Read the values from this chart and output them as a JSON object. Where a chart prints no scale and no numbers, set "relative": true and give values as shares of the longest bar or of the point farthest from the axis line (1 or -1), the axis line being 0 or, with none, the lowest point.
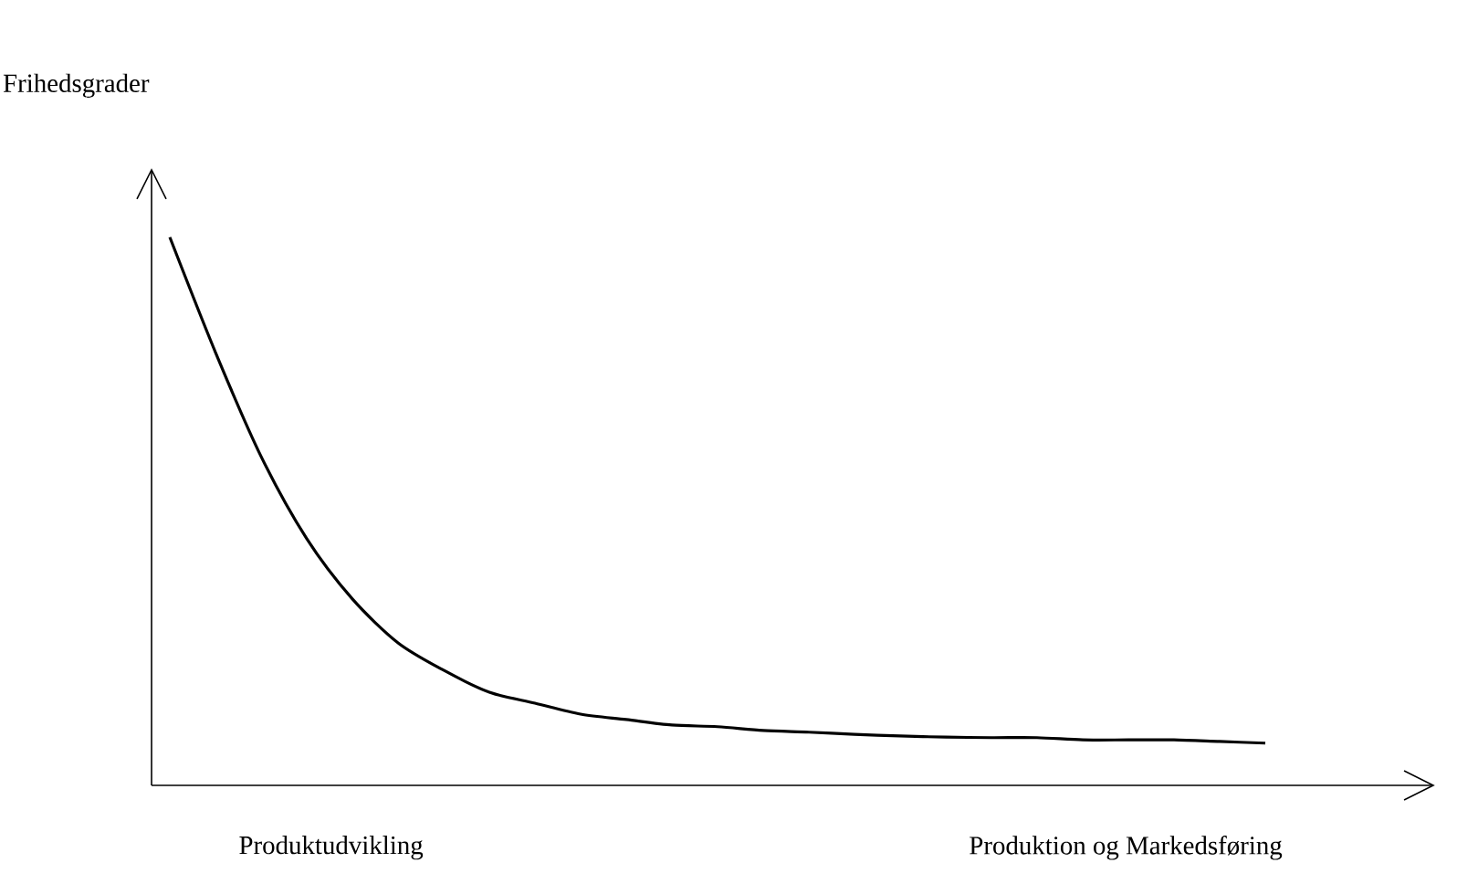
{
  "chart_data": {
    "type": "line",
    "relative": true,
    "categories": [
      null,
      null,
      null,
      null,
      null,
      null,
      null,
      null,
      null,
      null,
      null,
      null,
      null,
      null,
      null,
      null,
      null,
      null,
      null,
      null,
      null,
      null,
      null,
      null,
      null
    ],
    "values": [
      1.0,
      0.79,
      0.6,
      0.45,
      0.34,
      0.26,
      0.21,
      0.17,
      0.15,
      0.13,
      0.12,
      0.11,
      0.107,
      0.1,
      0.097,
      0.093,
      0.09,
      0.088,
      0.087,
      0.087,
      0.083,
      0.083,
      0.083,
      0.08,
      0.077
    ],
    "color": "#000000",
    "marker": "none",
    "line_style": "solid",
    "annotations": [
      "Frihedsgrader",
      "Produktudvikling",
      "Produktion og Markedsføring"
    ]
  }
}
